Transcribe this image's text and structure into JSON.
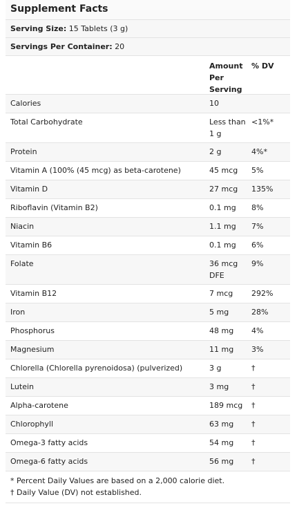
{
  "title": "Supplement Facts",
  "serving_size": {
    "label": "Serving Size:",
    "value": "15 Tablets (3 g)"
  },
  "servings_per_container": {
    "label": "Servings Per Container:",
    "value": "20"
  },
  "columns": {
    "amount": "Amount Per Serving",
    "dv": "% DV"
  },
  "rows": [
    {
      "name": "Calories",
      "amount": "10",
      "dv": ""
    },
    {
      "name": "Total Carbohydrate",
      "amount": "Less than 1 g",
      "dv": "<1%*"
    },
    {
      "name": "Protein",
      "amount": "2 g",
      "dv": "4%*"
    },
    {
      "name": "Vitamin A (100% (45 mcg) as beta-carotene)",
      "amount": "45 mcg",
      "dv": "5%"
    },
    {
      "name": "Vitamin D",
      "amount": "27 mcg",
      "dv": "135%"
    },
    {
      "name": "Riboflavin (Vitamin B2)",
      "amount": "0.1 mg",
      "dv": "8%"
    },
    {
      "name": "Niacin",
      "amount": "1.1 mg",
      "dv": "7%"
    },
    {
      "name": "Vitamin B6",
      "amount": "0.1 mg",
      "dv": "6%"
    },
    {
      "name": "Folate",
      "amount": "36 mcg DFE",
      "dv": "9%"
    },
    {
      "name": "Vitamin B12",
      "amount": "7 mcg",
      "dv": "292%"
    },
    {
      "name": "Iron",
      "amount": "5 mg",
      "dv": "28%"
    },
    {
      "name": "Phosphorus",
      "amount": "48 mg",
      "dv": "4%"
    },
    {
      "name": "Magnesium",
      "amount": "11 mg",
      "dv": "3%"
    },
    {
      "name": "Chlorella (Chlorella pyrenoidosa) (pulverized)",
      "amount": "3 g",
      "dv": "†"
    },
    {
      "name": "Lutein",
      "amount": "3 mg",
      "dv": "†"
    },
    {
      "name": "Alpha-carotene",
      "amount": "189 mcg",
      "dv": "†"
    },
    {
      "name": "Chlorophyll",
      "amount": "63 mg",
      "dv": "†"
    },
    {
      "name": "Omega-3 fatty acids",
      "amount": "54 mg",
      "dv": "†"
    },
    {
      "name": "Omega-6 fatty acids",
      "amount": "56 mg",
      "dv": "†"
    }
  ],
  "footnotes": [
    "* Percent Daily Values are based on a 2,000 calorie diet.",
    "† Daily Value (DV) not established."
  ]
}
